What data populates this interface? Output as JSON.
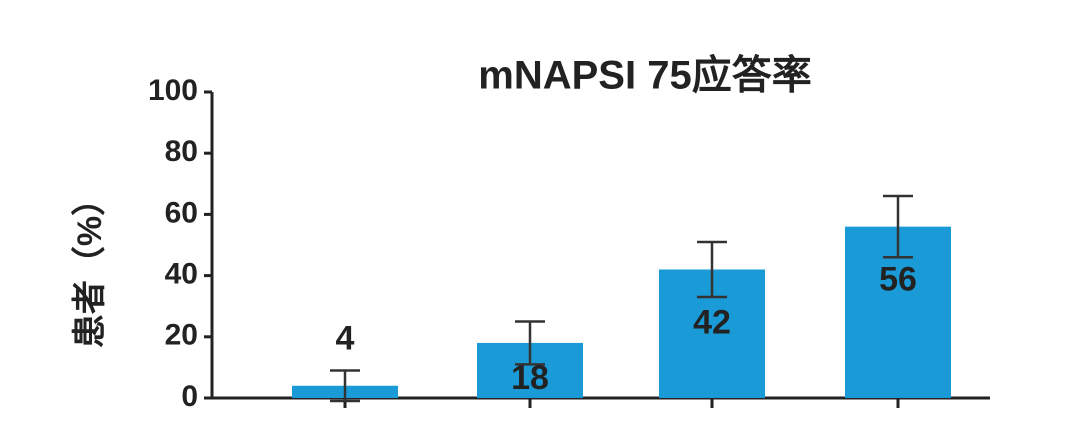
{
  "chart_data": {
    "type": "bar",
    "title": "mNAPSI 75应答率",
    "y_label": "患者（%）",
    "categories": [
      null,
      null,
      null,
      null
    ],
    "values": [
      4,
      18,
      42,
      56
    ],
    "errors": [
      5,
      7,
      9,
      10
    ],
    "color": "#1a9bd7",
    "ylim": [
      0,
      100
    ],
    "yticks": [
      0,
      20,
      40,
      60,
      80,
      100
    ]
  }
}
